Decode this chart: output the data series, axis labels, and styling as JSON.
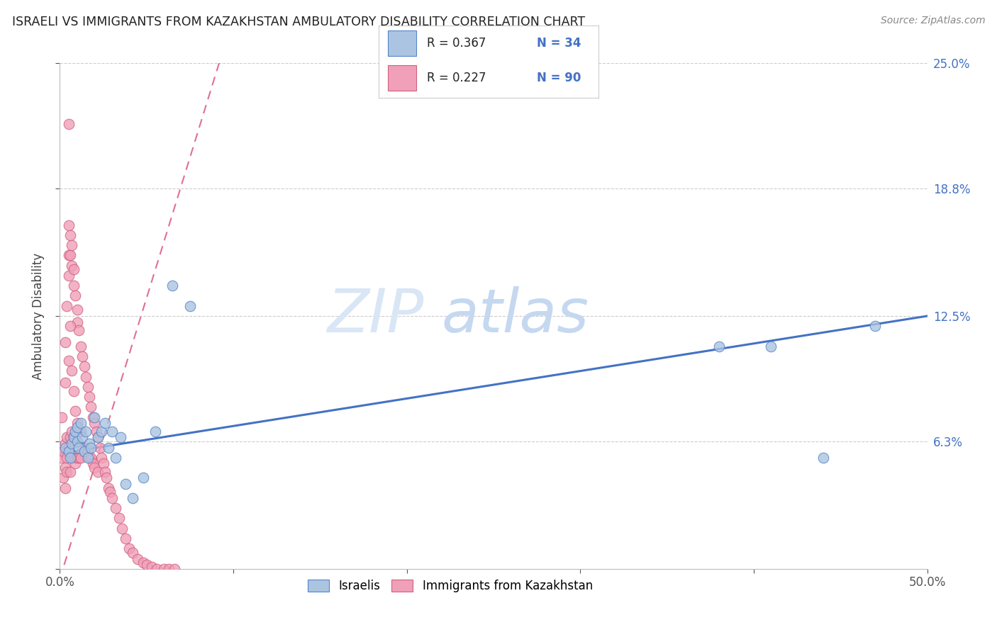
{
  "title": "ISRAELI VS IMMIGRANTS FROM KAZAKHSTAN AMBULATORY DISABILITY CORRELATION CHART",
  "source": "Source: ZipAtlas.com",
  "ylabel": "Ambulatory Disability",
  "xlim": [
    0.0,
    0.5
  ],
  "ylim": [
    0.0,
    0.25
  ],
  "legend_label1": "Israelis",
  "legend_label2": "Immigrants from Kazakhstan",
  "R1": 0.367,
  "N1": 34,
  "R2": 0.227,
  "N2": 90,
  "color_israeli": "#aac4e2",
  "color_kazakhstan": "#f0a0b8",
  "color_israeli_edge": "#5585c5",
  "color_kazakhstan_edge": "#d06080",
  "color_israeli_line": "#4472c4",
  "color_kazakhstan_line": "#e07090",
  "israeli_x": [
    0.003,
    0.005,
    0.006,
    0.007,
    0.008,
    0.009,
    0.01,
    0.01,
    0.011,
    0.012,
    0.013,
    0.014,
    0.015,
    0.016,
    0.017,
    0.018,
    0.02,
    0.022,
    0.024,
    0.026,
    0.028,
    0.03,
    0.032,
    0.035,
    0.038,
    0.042,
    0.048,
    0.055,
    0.065,
    0.075,
    0.38,
    0.41,
    0.44,
    0.47
  ],
  "israeli_y": [
    0.06,
    0.058,
    0.055,
    0.062,
    0.065,
    0.068,
    0.063,
    0.07,
    0.06,
    0.072,
    0.065,
    0.058,
    0.068,
    0.055,
    0.062,
    0.06,
    0.075,
    0.065,
    0.068,
    0.072,
    0.06,
    0.068,
    0.055,
    0.065,
    0.042,
    0.035,
    0.045,
    0.068,
    0.14,
    0.13,
    0.11,
    0.11,
    0.055,
    0.12
  ],
  "kaz_x": [
    0.001,
    0.002,
    0.002,
    0.003,
    0.003,
    0.003,
    0.004,
    0.004,
    0.004,
    0.005,
    0.005,
    0.005,
    0.005,
    0.005,
    0.006,
    0.006,
    0.006,
    0.006,
    0.007,
    0.007,
    0.007,
    0.007,
    0.008,
    0.008,
    0.008,
    0.008,
    0.009,
    0.009,
    0.009,
    0.01,
    0.01,
    0.01,
    0.01,
    0.011,
    0.011,
    0.011,
    0.012,
    0.012,
    0.012,
    0.013,
    0.013,
    0.014,
    0.014,
    0.015,
    0.015,
    0.016,
    0.016,
    0.017,
    0.017,
    0.018,
    0.018,
    0.019,
    0.019,
    0.02,
    0.02,
    0.021,
    0.022,
    0.022,
    0.023,
    0.024,
    0.025,
    0.026,
    0.027,
    0.028,
    0.029,
    0.03,
    0.032,
    0.034,
    0.036,
    0.038,
    0.04,
    0.042,
    0.045,
    0.048,
    0.05,
    0.053,
    0.056,
    0.06,
    0.063,
    0.066,
    0.001,
    0.003,
    0.003,
    0.004,
    0.005,
    0.006,
    0.007,
    0.008,
    0.009,
    0.01
  ],
  "kaz_y": [
    0.055,
    0.058,
    0.045,
    0.062,
    0.05,
    0.04,
    0.065,
    0.055,
    0.048,
    0.22,
    0.17,
    0.155,
    0.145,
    0.06,
    0.165,
    0.155,
    0.065,
    0.048,
    0.16,
    0.15,
    0.068,
    0.055,
    0.148,
    0.14,
    0.065,
    0.055,
    0.135,
    0.065,
    0.052,
    0.128,
    0.122,
    0.068,
    0.055,
    0.118,
    0.068,
    0.055,
    0.11,
    0.068,
    0.055,
    0.105,
    0.06,
    0.1,
    0.058,
    0.095,
    0.06,
    0.09,
    0.058,
    0.085,
    0.055,
    0.08,
    0.055,
    0.075,
    0.052,
    0.072,
    0.05,
    0.068,
    0.065,
    0.048,
    0.06,
    0.055,
    0.052,
    0.048,
    0.045,
    0.04,
    0.038,
    0.035,
    0.03,
    0.025,
    0.02,
    0.015,
    0.01,
    0.008,
    0.005,
    0.003,
    0.002,
    0.001,
    0.0,
    0.0,
    0.0,
    0.0,
    0.075,
    0.112,
    0.092,
    0.13,
    0.103,
    0.12,
    0.098,
    0.088,
    0.078,
    0.072
  ]
}
